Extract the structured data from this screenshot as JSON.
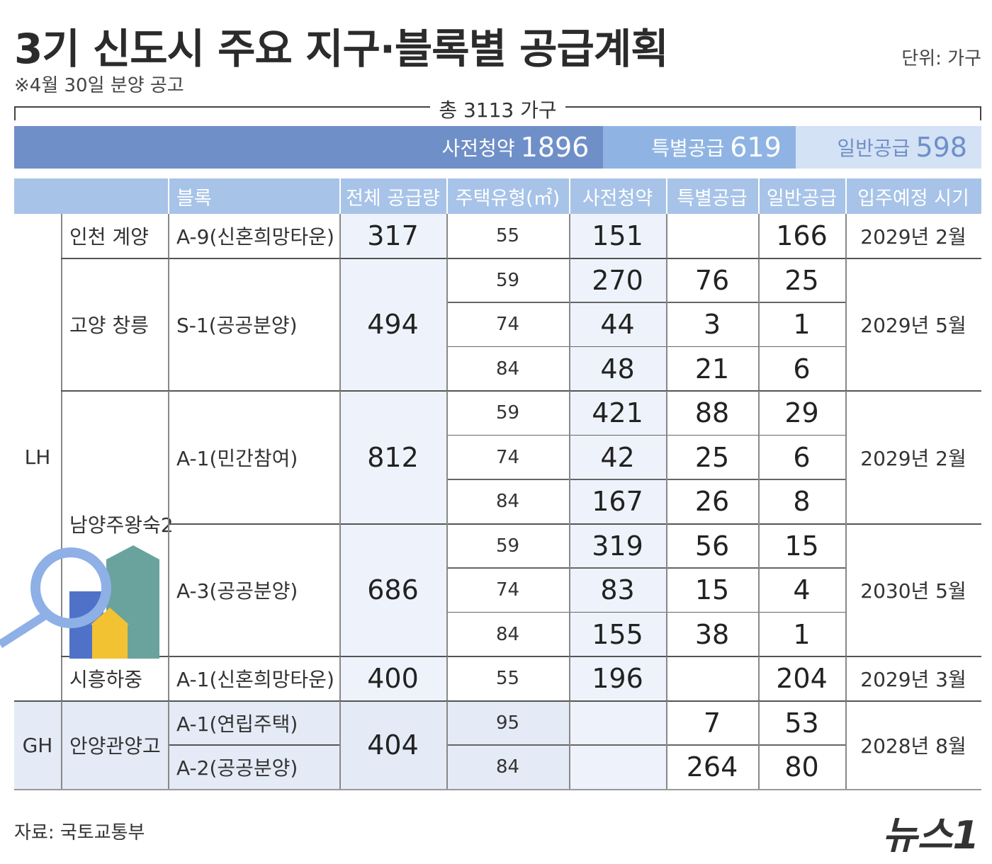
{
  "header": {
    "title": "3기 신도시 주요 지구·블록별 공급계획",
    "unit": "단위: 가구",
    "note": "※4월 30일 분양 공고"
  },
  "summary": {
    "total": "총 3113 가구",
    "segments": [
      {
        "label": "사전청약",
        "value": 1896
      },
      {
        "label": "특별공급",
        "value": 619
      },
      {
        "label": "일반공급",
        "value": 598
      }
    ]
  },
  "table": {
    "columns": [
      "블록",
      "전체 공급량",
      "주택유형(㎡)",
      "사전청약",
      "특별공급",
      "일반공급",
      "입주예정 시기"
    ],
    "groups": [
      {
        "org": "LH",
        "districts": [
          {
            "name": "인천 계양",
            "blocks": [
              {
                "block": "A-9(신혼희망타운)",
                "total": 317,
                "move_in": "2029년 2월",
                "units": [
                  {
                    "type": 55,
                    "pre": 151,
                    "special": null,
                    "general": 166
                  }
                ]
              }
            ]
          },
          {
            "name": "고양 창릉",
            "blocks": [
              {
                "block": "S-1(공공분양)",
                "total": 494,
                "move_in": "2029년 5월",
                "units": [
                  {
                    "type": 59,
                    "pre": 270,
                    "special": 76,
                    "general": 25
                  },
                  {
                    "type": 74,
                    "pre": 44,
                    "special": 3,
                    "general": 1
                  },
                  {
                    "type": 84,
                    "pre": 48,
                    "special": 21,
                    "general": 6
                  }
                ]
              }
            ]
          },
          {
            "name": "남양주왕숙2",
            "blocks": [
              {
                "block": "A-1(민간참여)",
                "total": 812,
                "move_in": "2029년 2월",
                "units": [
                  {
                    "type": 59,
                    "pre": 421,
                    "special": 88,
                    "general": 29
                  },
                  {
                    "type": 74,
                    "pre": 42,
                    "special": 25,
                    "general": 6
                  },
                  {
                    "type": 84,
                    "pre": 167,
                    "special": 26,
                    "general": 8
                  }
                ]
              },
              {
                "block": "A-3(공공분양)",
                "total": 686,
                "move_in": "2030년 5월",
                "units": [
                  {
                    "type": 59,
                    "pre": 319,
                    "special": 56,
                    "general": 15
                  },
                  {
                    "type": 74,
                    "pre": 83,
                    "special": 15,
                    "general": 4
                  },
                  {
                    "type": 84,
                    "pre": 155,
                    "special": 38,
                    "general": 1
                  }
                ]
              }
            ]
          },
          {
            "name": "시흥하중",
            "blocks": [
              {
                "block": "A-1(신혼희망타운)",
                "total": 400,
                "move_in": "2029년 3월",
                "units": [
                  {
                    "type": 55,
                    "pre": 196,
                    "special": null,
                    "general": 204
                  }
                ]
              }
            ]
          }
        ]
      },
      {
        "org": "GH",
        "districts": [
          {
            "name": "안양관양고",
            "total": 404,
            "move_in": "2028년 8월",
            "blocks": [
              {
                "block": "A-1(연립주택)",
                "units": [
                  {
                    "type": 95,
                    "pre": null,
                    "special": 7,
                    "general": 53
                  }
                ]
              },
              {
                "block": "A-2(공공분양)",
                "units": [
                  {
                    "type": 84,
                    "pre": null,
                    "special": 264,
                    "general": 80
                  }
                ]
              }
            ]
          }
        ]
      }
    ]
  },
  "footer": {
    "source": "자료: 국토교통부",
    "logo": "뉴스1"
  }
}
